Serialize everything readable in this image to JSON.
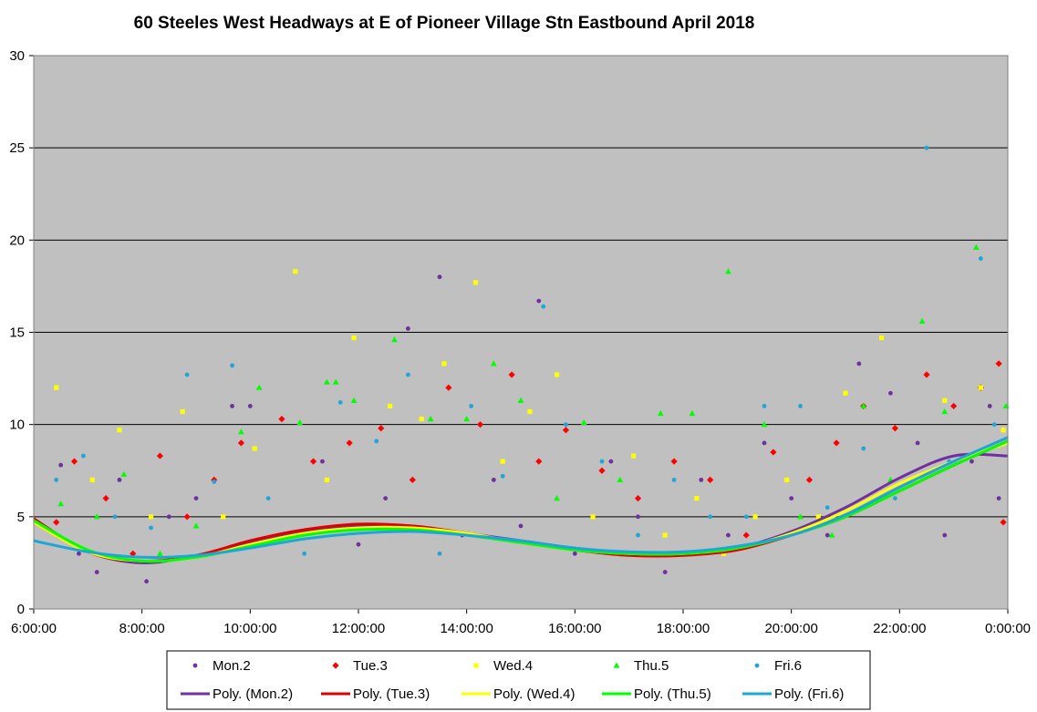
{
  "chart_data": {
    "type": "scatter",
    "title": "60 Steeles West Headways at E of Pioneer Village Stn Eastbound April 2018",
    "xlabel": "",
    "ylabel": "",
    "xlim": [
      "6:00:00",
      "0:00:00"
    ],
    "ylim": [
      0,
      30
    ],
    "x_ticks": [
      "6:00:00",
      "8:00:00",
      "10:00:00",
      "12:00:00",
      "14:00:00",
      "16:00:00",
      "18:00:00",
      "20:00:00",
      "22:00:00",
      "0:00:00"
    ],
    "y_ticks": [
      "0",
      "5",
      "10",
      "15",
      "20",
      "25",
      "30"
    ],
    "grid": "horizontal major gridlines",
    "plot_background": "#c0c0c0",
    "legend_position": "bottom",
    "series": [
      {
        "name": "Mon.2",
        "marker": "circle",
        "color": "#7030a0",
        "points": [
          [
            "6:30",
            7.8
          ],
          [
            "6:50",
            3.0
          ],
          [
            "7:10",
            2.0
          ],
          [
            "7:35",
            7.0
          ],
          [
            "8:05",
            1.5
          ],
          [
            "8:30",
            5.0
          ],
          [
            "9:00",
            6.0
          ],
          [
            "9:40",
            11.0
          ],
          [
            "10:00",
            11.0
          ],
          [
            "10:40",
            4.0
          ],
          [
            "11:20",
            8.0
          ],
          [
            "12:00",
            3.5
          ],
          [
            "12:30",
            6.0
          ],
          [
            "12:55",
            15.2
          ],
          [
            "13:30",
            18.0
          ],
          [
            "13:55",
            4.0
          ],
          [
            "14:30",
            7.0
          ],
          [
            "15:00",
            4.5
          ],
          [
            "15:20",
            16.7
          ],
          [
            "16:00",
            3.0
          ],
          [
            "16:40",
            8.0
          ],
          [
            "17:10",
            5.0
          ],
          [
            "17:40",
            2.0
          ],
          [
            "18:20",
            7.0
          ],
          [
            "18:50",
            4.0
          ],
          [
            "19:30",
            9.0
          ],
          [
            "20:00",
            6.0
          ],
          [
            "20:40",
            4.0
          ],
          [
            "21:15",
            13.3
          ],
          [
            "21:50",
            11.7
          ],
          [
            "22:20",
            9.0
          ],
          [
            "22:50",
            4.0
          ],
          [
            "23:20",
            8.0
          ],
          [
            "23:40",
            11.0
          ],
          [
            "23:50",
            6.0
          ]
        ]
      },
      {
        "name": "Tue.3",
        "marker": "diamond",
        "color": "#ff0000",
        "points": [
          [
            "6:25",
            4.7
          ],
          [
            "6:45",
            8.0
          ],
          [
            "7:20",
            6.0
          ],
          [
            "7:50",
            3.0
          ],
          [
            "8:20",
            8.3
          ],
          [
            "8:50",
            5.0
          ],
          [
            "9:20",
            7.0
          ],
          [
            "9:50",
            9.0
          ],
          [
            "10:35",
            10.3
          ],
          [
            "11:10",
            8.0
          ],
          [
            "11:50",
            9.0
          ],
          [
            "12:25",
            9.8
          ],
          [
            "13:00",
            7.0
          ],
          [
            "13:40",
            12.0
          ],
          [
            "14:15",
            10.0
          ],
          [
            "14:50",
            12.7
          ],
          [
            "15:20",
            8.0
          ],
          [
            "15:50",
            9.7
          ],
          [
            "16:30",
            7.5
          ],
          [
            "17:10",
            6.0
          ],
          [
            "17:50",
            8.0
          ],
          [
            "18:30",
            7.0
          ],
          [
            "19:10",
            4.0
          ],
          [
            "19:40",
            8.5
          ],
          [
            "20:20",
            7.0
          ],
          [
            "20:50",
            9.0
          ],
          [
            "21:20",
            11.0
          ],
          [
            "21:55",
            9.8
          ],
          [
            "22:30",
            12.7
          ],
          [
            "23:00",
            11.0
          ],
          [
            "23:30",
            12.0
          ],
          [
            "23:50",
            13.3
          ],
          [
            "23:55",
            4.7
          ]
        ]
      },
      {
        "name": "Wed.4",
        "marker": "square",
        "color": "#ffff00",
        "points": [
          [
            "6:25",
            12.0
          ],
          [
            "7:05",
            7.0
          ],
          [
            "7:35",
            9.7
          ],
          [
            "8:10",
            5.0
          ],
          [
            "8:45",
            10.7
          ],
          [
            "9:30",
            5.0
          ],
          [
            "10:05",
            8.7
          ],
          [
            "10:50",
            18.3
          ],
          [
            "11:25",
            7.0
          ],
          [
            "11:55",
            14.7
          ],
          [
            "12:35",
            11.0
          ],
          [
            "13:10",
            10.3
          ],
          [
            "13:35",
            13.3
          ],
          [
            "14:10",
            17.7
          ],
          [
            "14:40",
            8.0
          ],
          [
            "15:10",
            10.7
          ],
          [
            "15:40",
            12.7
          ],
          [
            "16:20",
            5.0
          ],
          [
            "17:05",
            8.3
          ],
          [
            "17:40",
            4.0
          ],
          [
            "18:15",
            6.0
          ],
          [
            "18:45",
            3.0
          ],
          [
            "19:20",
            5.0
          ],
          [
            "19:55",
            7.0
          ],
          [
            "20:30",
            5.0
          ],
          [
            "21:00",
            11.7
          ],
          [
            "21:40",
            14.7
          ],
          [
            "22:20",
            7.0
          ],
          [
            "22:50",
            11.3
          ],
          [
            "23:30",
            12.0
          ],
          [
            "23:55",
            9.7
          ]
        ]
      },
      {
        "name": "Thu.5",
        "marker": "triangle",
        "color": "#00ff00",
        "points": [
          [
            "6:30",
            5.7
          ],
          [
            "7:10",
            5.0
          ],
          [
            "7:40",
            7.3
          ],
          [
            "8:20",
            3.0
          ],
          [
            "9:00",
            4.5
          ],
          [
            "9:50",
            9.6
          ],
          [
            "10:10",
            12.0
          ],
          [
            "10:55",
            10.1
          ],
          [
            "11:25",
            12.3
          ],
          [
            "11:35",
            12.3
          ],
          [
            "11:55",
            11.3
          ],
          [
            "12:40",
            14.6
          ],
          [
            "13:20",
            10.3
          ],
          [
            "14:00",
            10.3
          ],
          [
            "14:30",
            13.3
          ],
          [
            "15:00",
            11.3
          ],
          [
            "15:40",
            6.0
          ],
          [
            "16:10",
            10.1
          ],
          [
            "16:50",
            7.0
          ],
          [
            "17:35",
            10.6
          ],
          [
            "18:10",
            10.6
          ],
          [
            "18:50",
            18.3
          ],
          [
            "19:30",
            10.0
          ],
          [
            "20:10",
            5.0
          ],
          [
            "20:45",
            4.0
          ],
          [
            "21:20",
            11.0
          ],
          [
            "21:50",
            7.0
          ],
          [
            "22:25",
            15.6
          ],
          [
            "22:50",
            10.7
          ],
          [
            "23:25",
            19.6
          ],
          [
            "23:58",
            11.0
          ]
        ]
      },
      {
        "name": "Fri.6",
        "marker": "circle",
        "color": "#1ea6d8",
        "points": [
          [
            "6:25",
            7.0
          ],
          [
            "6:55",
            8.3
          ],
          [
            "7:30",
            5.0
          ],
          [
            "8:10",
            4.4
          ],
          [
            "8:50",
            12.7
          ],
          [
            "9:20",
            6.9
          ],
          [
            "9:40",
            13.2
          ],
          [
            "10:20",
            6.0
          ],
          [
            "11:00",
            3.0
          ],
          [
            "11:40",
            11.2
          ],
          [
            "12:20",
            9.1
          ],
          [
            "12:55",
            12.7
          ],
          [
            "13:30",
            3.0
          ],
          [
            "14:05",
            11.0
          ],
          [
            "14:40",
            7.2
          ],
          [
            "15:25",
            16.4
          ],
          [
            "15:50",
            10.0
          ],
          [
            "16:30",
            8.0
          ],
          [
            "17:10",
            4.0
          ],
          [
            "17:50",
            7.0
          ],
          [
            "18:30",
            5.0
          ],
          [
            "19:10",
            5.0
          ],
          [
            "19:30",
            11.0
          ],
          [
            "20:10",
            11.0
          ],
          [
            "20:40",
            5.5
          ],
          [
            "21:20",
            8.7
          ],
          [
            "21:55",
            6.0
          ],
          [
            "22:30",
            25.0
          ],
          [
            "22:55",
            8.0
          ],
          [
            "23:30",
            19.0
          ],
          [
            "23:45",
            10.0
          ]
        ]
      }
    ],
    "trendlines": [
      {
        "name": "Poly. (Mon.2)",
        "color": "#7030a0",
        "points": [
          [
            "6:00",
            4.8
          ],
          [
            "7:00",
            3.1
          ],
          [
            "8:00",
            2.5
          ],
          [
            "9:00",
            2.9
          ],
          [
            "10:00",
            3.6
          ],
          [
            "11:00",
            4.2
          ],
          [
            "12:00",
            4.5
          ],
          [
            "13:00",
            4.5
          ],
          [
            "14:00",
            4.1
          ],
          [
            "15:00",
            3.7
          ],
          [
            "16:00",
            3.3
          ],
          [
            "17:00",
            3.0
          ],
          [
            "18:00",
            3.0
          ],
          [
            "19:00",
            3.3
          ],
          [
            "20:00",
            4.2
          ],
          [
            "21:00",
            5.5
          ],
          [
            "22:00",
            7.1
          ],
          [
            "23:00",
            8.3
          ],
          [
            "0:00",
            8.3
          ]
        ]
      },
      {
        "name": "Poly. (Tue.3)",
        "color": "#e00000",
        "points": [
          [
            "6:00",
            4.9
          ],
          [
            "7:00",
            3.1
          ],
          [
            "8:00",
            2.6
          ],
          [
            "9:00",
            2.9
          ],
          [
            "10:00",
            3.7
          ],
          [
            "11:00",
            4.3
          ],
          [
            "12:00",
            4.6
          ],
          [
            "13:00",
            4.5
          ],
          [
            "14:00",
            4.1
          ],
          [
            "15:00",
            3.6
          ],
          [
            "16:00",
            3.2
          ],
          [
            "17:00",
            2.9
          ],
          [
            "18:00",
            2.9
          ],
          [
            "19:00",
            3.2
          ],
          [
            "20:00",
            4.0
          ],
          [
            "21:00",
            5.0
          ],
          [
            "22:00",
            6.4
          ],
          [
            "23:00",
            7.8
          ],
          [
            "0:00",
            9.1
          ]
        ]
      },
      {
        "name": "Poly. (Wed.4)",
        "color": "#ffff00",
        "points": [
          [
            "6:00",
            4.7
          ],
          [
            "7:00",
            3.1
          ],
          [
            "8:00",
            2.6
          ],
          [
            "9:00",
            2.8
          ],
          [
            "10:00",
            3.5
          ],
          [
            "11:00",
            4.1
          ],
          [
            "12:00",
            4.4
          ],
          [
            "13:00",
            4.4
          ],
          [
            "14:00",
            4.1
          ],
          [
            "15:00",
            3.6
          ],
          [
            "16:00",
            3.2
          ],
          [
            "17:00",
            3.0
          ],
          [
            "18:00",
            3.0
          ],
          [
            "19:00",
            3.3
          ],
          [
            "20:00",
            4.1
          ],
          [
            "21:00",
            5.3
          ],
          [
            "22:00",
            6.8
          ],
          [
            "23:00",
            8.0
          ],
          [
            "0:00",
            9.0
          ]
        ]
      },
      {
        "name": "Poly. (Thu.5)",
        "color": "#00ff00",
        "points": [
          [
            "6:00",
            4.8
          ],
          [
            "7:00",
            3.2
          ],
          [
            "8:00",
            2.6
          ],
          [
            "9:00",
            2.8
          ],
          [
            "10:00",
            3.4
          ],
          [
            "11:00",
            4.0
          ],
          [
            "12:00",
            4.3
          ],
          [
            "13:00",
            4.3
          ],
          [
            "14:00",
            4.0
          ],
          [
            "15:00",
            3.6
          ],
          [
            "16:00",
            3.2
          ],
          [
            "17:00",
            3.0
          ],
          [
            "18:00",
            3.0
          ],
          [
            "19:00",
            3.3
          ],
          [
            "20:00",
            4.0
          ],
          [
            "21:00",
            5.0
          ],
          [
            "22:00",
            6.4
          ],
          [
            "23:00",
            7.8
          ],
          [
            "0:00",
            9.1
          ]
        ]
      },
      {
        "name": "Poly. (Fri.6)",
        "color": "#1ea6d8",
        "points": [
          [
            "6:00",
            3.7
          ],
          [
            "7:00",
            3.1
          ],
          [
            "8:00",
            2.8
          ],
          [
            "9:00",
            2.9
          ],
          [
            "10:00",
            3.3
          ],
          [
            "11:00",
            3.8
          ],
          [
            "12:00",
            4.1
          ],
          [
            "13:00",
            4.2
          ],
          [
            "14:00",
            4.0
          ],
          [
            "15:00",
            3.7
          ],
          [
            "16:00",
            3.3
          ],
          [
            "17:00",
            3.1
          ],
          [
            "18:00",
            3.1
          ],
          [
            "19:00",
            3.4
          ],
          [
            "20:00",
            4.0
          ],
          [
            "21:00",
            5.1
          ],
          [
            "22:00",
            6.6
          ],
          [
            "23:00",
            8.0
          ],
          [
            "0:00",
            9.3
          ]
        ]
      }
    ],
    "legend": {
      "markers": [
        "Mon.2",
        "Tue.3",
        "Wed.4",
        "Thu.5",
        "Fri.6"
      ],
      "lines": [
        "Poly. (Mon.2)",
        "Poly. (Tue.3)",
        "Poly. (Wed.4)",
        "Poly. (Thu.5)",
        "Poly. (Fri.6)"
      ]
    }
  }
}
